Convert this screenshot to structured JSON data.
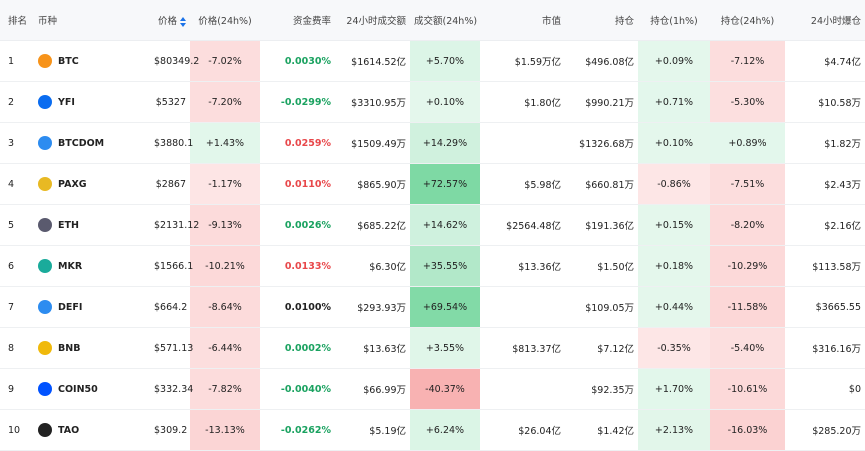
{
  "table": {
    "header": [
      "排名",
      "币种",
      "价格",
      "价格(24h%)",
      "资金费率",
      "24小时成交额",
      "成交额(24h%)",
      "市值",
      "持仓",
      "持仓(1h%)",
      "持仓(24h%)",
      "24小时爆仓"
    ],
    "rows": [
      [
        "1",
        "BTC",
        "$80349.2",
        "-7.02%",
        "0.0030%",
        "$1614.52亿",
        "+5.70%",
        "$1.59万亿",
        "$496.08亿",
        "+0.09%",
        "-7.12%",
        "$4.74亿"
      ],
      [
        "2",
        "YFI",
        "$5327",
        "-7.20%",
        "-0.0299%",
        "$3310.95万",
        "+0.10%",
        "$1.80亿",
        "$990.21万",
        "+0.71%",
        "-5.30%",
        "$10.58万"
      ],
      [
        "3",
        "BTCDOM",
        "$3880.1",
        "+1.43%",
        "0.0259%",
        "$1509.49万",
        "+14.29%",
        null,
        "$1326.68万",
        "+0.10%",
        "+0.89%",
        "$1.82万"
      ],
      [
        "4",
        "PAXG",
        "$2867",
        "-1.17%",
        "0.0110%",
        "$865.90万",
        "+72.57%",
        "$5.98亿",
        "$660.81万",
        "-0.86%",
        "-7.51%",
        "$2.43万"
      ],
      [
        "5",
        "ETH",
        "$2131.12",
        "-9.13%",
        "0.0026%",
        "$685.22亿",
        "+14.62%",
        "$2564.48亿",
        "$191.36亿",
        "+0.15%",
        "-8.20%",
        "$2.16亿"
      ],
      [
        "6",
        "MKR",
        "$1566.1",
        "-10.21%",
        "0.0133%",
        "$6.30亿",
        "+35.55%",
        "$13.36亿",
        "$1.50亿",
        "+0.18%",
        "-10.29%",
        "$113.58万"
      ],
      [
        "7",
        "DEFI",
        "$664.2",
        "-8.64%",
        "0.0100%",
        "$293.93万",
        "+69.54%",
        null,
        "$109.05万",
        "+0.44%",
        "-11.58%",
        "$3665.55"
      ],
      [
        "8",
        "BNB",
        "$571.13",
        "-6.44%",
        "0.0002%",
        "$13.63亿",
        "+3.55%",
        "$813.37亿",
        "$7.12亿",
        "-0.35%",
        "-5.40%",
        "$316.16万"
      ],
      [
        "9",
        "COIN50",
        "$332.34",
        "-7.82%",
        "-0.0040%",
        "$66.99万",
        "-40.37%",
        null,
        "$92.35万",
        "+1.70%",
        "-10.61%",
        "$0"
      ],
      [
        "10",
        "TAO",
        "$309.2",
        "-13.13%",
        "-0.0262%",
        "$5.19亿",
        "+6.24%",
        "$26.04亿",
        "$1.42亿",
        "+2.13%",
        "-16.03%",
        "$285.20万"
      ]
    ]
  }
}
